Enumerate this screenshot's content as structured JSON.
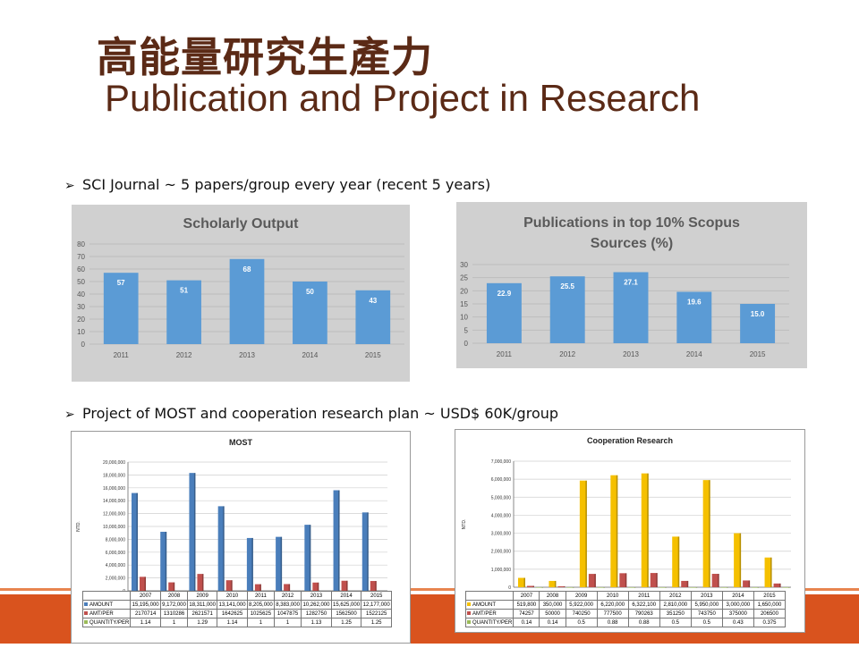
{
  "title_zh": "高能量研究生產力",
  "title_en": "Publication and Project in Research",
  "bullet1": "SCI Journal ~ 5 papers/group every year (recent 5 years)",
  "bullet2": "Project of MOST and cooperation research plan ~ USD$ 60K/group",
  "chart_data": [
    {
      "type": "bar",
      "title": "Scholarly Output",
      "categories": [
        "2011",
        "2012",
        "2013",
        "2014",
        "2015"
      ],
      "values": [
        57,
        51,
        68,
        50,
        43
      ],
      "ylim": [
        0,
        80
      ],
      "yticks": [
        0,
        10,
        20,
        30,
        40,
        50,
        60,
        70,
        80
      ],
      "color": "#5b9bd5",
      "grid": true
    },
    {
      "type": "bar",
      "title": "Publications in top 10% Scopus Sources (%)",
      "title_lines": [
        "Publications in top 10% Scopus",
        "Sources (%)"
      ],
      "categories": [
        "2011",
        "2012",
        "2013",
        "2014",
        "2015"
      ],
      "values": [
        22.9,
        25.5,
        27.1,
        19.6,
        15.0
      ],
      "labels": [
        "22.9",
        "25.5",
        "27.1",
        "19.6",
        "15.0"
      ],
      "ylim": [
        0,
        30
      ],
      "yticks": [
        0,
        5,
        10,
        15,
        20,
        25,
        30
      ],
      "color": "#5b9bd5",
      "grid": true
    },
    {
      "type": "bar",
      "title": "MOST",
      "ylabel": "NTD.",
      "categories": [
        "2007",
        "2008",
        "2009",
        "2010",
        "2011",
        "2012",
        "2013",
        "2014",
        "2015"
      ],
      "ylim": [
        0,
        20000000
      ],
      "ytick_labels": [
        "0",
        "2,000,000",
        "4,000,000",
        "6,000,000",
        "8,000,000",
        "10,000,000",
        "12,000,000",
        "14,000,000",
        "16,000,000",
        "18,000,000",
        "20,000,000"
      ],
      "series": [
        {
          "name": "AMOUNT",
          "color": "#4a7ebb",
          "values": [
            15195000,
            9172000,
            18311000,
            13141000,
            8205000,
            8383000,
            10262000,
            15625000,
            12177000
          ],
          "table": [
            "15,195,000",
            "9,172,000",
            "18,311,000",
            "13,141,000",
            "8,205,000",
            "8,383,000",
            "10,262,000",
            "15,625,000",
            "12,177,000"
          ]
        },
        {
          "name": "AMT/PER",
          "color": "#c0504d",
          "values": [
            2170714,
            1310286,
            2621571,
            1642625,
            1025625,
            1047875,
            1282750,
            1562500,
            1522125
          ],
          "table": [
            "2170714",
            "1310286",
            "2621571",
            "1642625",
            "1025625",
            "1047875",
            "1282750",
            "1562500",
            "1522125"
          ]
        },
        {
          "name": "QUANTITY/PER",
          "color": "#9bbb59",
          "values": [
            1.14,
            1,
            1.29,
            1.14,
            1,
            1,
            1.13,
            1.25,
            1.25
          ],
          "table": [
            "1.14",
            "1",
            "1.29",
            "1.14",
            "1",
            "1",
            "1.13",
            "1.25",
            "1.25"
          ]
        }
      ]
    },
    {
      "type": "bar",
      "title": "Cooperation Research",
      "ylabel": "NTD.",
      "categories": [
        "2007",
        "2008",
        "2009",
        "2010",
        "2011",
        "2012",
        "2013",
        "2014",
        "2015"
      ],
      "ylim": [
        0,
        7000000
      ],
      "ytick_labels": [
        "0",
        "1,000,000",
        "2,000,000",
        "3,000,000",
        "4,000,000",
        "5,000,000",
        "6,000,000",
        "7,000,000"
      ],
      "series": [
        {
          "name": "AMOUNT",
          "color": "#f5c000",
          "values": [
            519800,
            350000,
            5922000,
            6220000,
            6322100,
            2810000,
            5950000,
            3000000,
            1650000
          ],
          "table": [
            "519,800",
            "350,000",
            "5,922,000",
            "6,220,000",
            "6,322,100",
            "2,810,000",
            "5,950,000",
            "3,000,000",
            "1,650,000"
          ]
        },
        {
          "name": "AMT/PER",
          "color": "#c0504d",
          "values": [
            74257,
            50000,
            740250,
            777500,
            790263,
            351250,
            743750,
            375000,
            206500
          ],
          "table": [
            "74257",
            "50000",
            "740250",
            "777500",
            "790263",
            "351250",
            "743750",
            "375000",
            "206500"
          ]
        },
        {
          "name": "QUANTITY/PER",
          "color": "#9bbb59",
          "values": [
            0.14,
            0.14,
            0.5,
            0.88,
            0.88,
            0.5,
            0.5,
            0.43,
            0.375
          ],
          "table": [
            "0.14",
            "0.14",
            "0.5",
            "0.88",
            "0.88",
            "0.5",
            "0.5",
            "0.43",
            "0.375"
          ]
        }
      ]
    }
  ]
}
